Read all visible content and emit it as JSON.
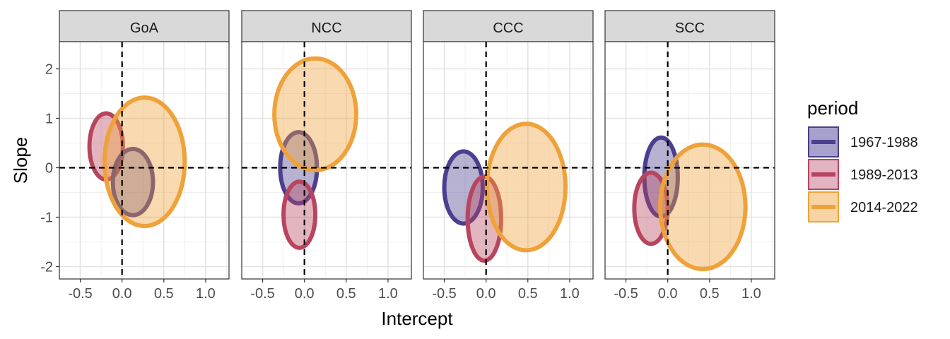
{
  "chart_data": {
    "type": "scatter",
    "xlabel": "Intercept",
    "ylabel": "Slope",
    "xlim": [
      -0.75,
      1.28
    ],
    "ylim": [
      -2.25,
      2.55
    ],
    "x_ticks": [
      -0.5,
      0.0,
      0.5,
      1.0
    ],
    "x_tick_labels": [
      "-0.5",
      "0.0",
      "0.5",
      "1.0"
    ],
    "y_ticks": [
      -2,
      -1,
      0,
      1,
      2
    ],
    "y_tick_labels": [
      "-2",
      "-1",
      "0",
      "1",
      "2"
    ],
    "reference_lines": {
      "x": 0,
      "y": 0,
      "style": "dashed"
    },
    "grid": true,
    "legend": {
      "title": "period",
      "placement": "right",
      "entries": [
        {
          "label": "1967-1988",
          "color": "#4B3F8F",
          "fill": "#A7A2CC"
        },
        {
          "label": "1989-2013",
          "color": "#B8455F",
          "fill": "#E2B3C0"
        },
        {
          "label": "2014-2022",
          "color": "#EFA23A",
          "fill": "#F8D4A4"
        }
      ]
    },
    "panels": [
      {
        "name": "GoA",
        "ellipses": [
          {
            "period": "1989-2013",
            "cx": -0.19,
            "cy": 0.43,
            "rx": 0.2,
            "ry": 0.67
          },
          {
            "period": "1967-1988",
            "cx": 0.13,
            "cy": -0.29,
            "rx": 0.24,
            "ry": 0.67
          },
          {
            "period": "2014-2022",
            "cx": 0.27,
            "cy": 0.12,
            "rx": 0.48,
            "ry": 1.3
          }
        ]
      },
      {
        "name": "NCC",
        "ellipses": [
          {
            "period": "1967-1988",
            "cx": -0.07,
            "cy": 0.0,
            "rx": 0.22,
            "ry": 0.72
          },
          {
            "period": "1989-2013",
            "cx": -0.06,
            "cy": -0.95,
            "rx": 0.19,
            "ry": 0.67
          },
          {
            "period": "2014-2022",
            "cx": 0.13,
            "cy": 1.08,
            "rx": 0.49,
            "ry": 1.13
          }
        ]
      },
      {
        "name": "CCC",
        "ellipses": [
          {
            "period": "1967-1988",
            "cx": -0.27,
            "cy": -0.4,
            "rx": 0.23,
            "ry": 0.73
          },
          {
            "period": "1989-2013",
            "cx": -0.02,
            "cy": -1.03,
            "rx": 0.2,
            "ry": 0.85
          },
          {
            "period": "2014-2022",
            "cx": 0.48,
            "cy": -0.39,
            "rx": 0.47,
            "ry": 1.28
          }
        ]
      },
      {
        "name": "SCC",
        "ellipses": [
          {
            "period": "1967-1988",
            "cx": -0.08,
            "cy": -0.19,
            "rx": 0.2,
            "ry": 0.8
          },
          {
            "period": "1989-2013",
            "cx": -0.2,
            "cy": -0.82,
            "rx": 0.2,
            "ry": 0.72
          },
          {
            "period": "2014-2022",
            "cx": 0.42,
            "cy": -0.79,
            "rx": 0.51,
            "ry": 1.26
          }
        ]
      }
    ]
  }
}
